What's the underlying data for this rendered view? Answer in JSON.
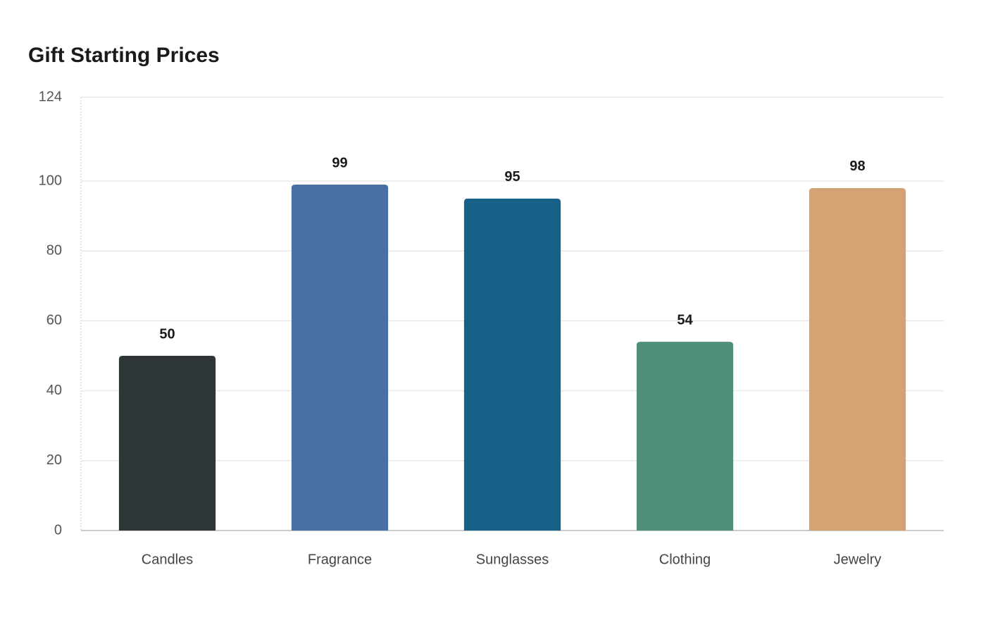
{
  "chart_data": {
    "type": "bar",
    "title": "Gift Starting Prices",
    "categories": [
      "Candles",
      "Fragrance",
      "Sunglasses",
      "Clothing",
      "Jewelry"
    ],
    "values": [
      50,
      99,
      95,
      54,
      98
    ],
    "colors": [
      "#2e3537",
      "#4a6fa5",
      "#176087",
      "#4f8f7c",
      "#d4a373"
    ],
    "ylim": [
      0,
      124
    ],
    "yticks": [
      0,
      20,
      40,
      60,
      80,
      100,
      124
    ],
    "grid": true
  }
}
